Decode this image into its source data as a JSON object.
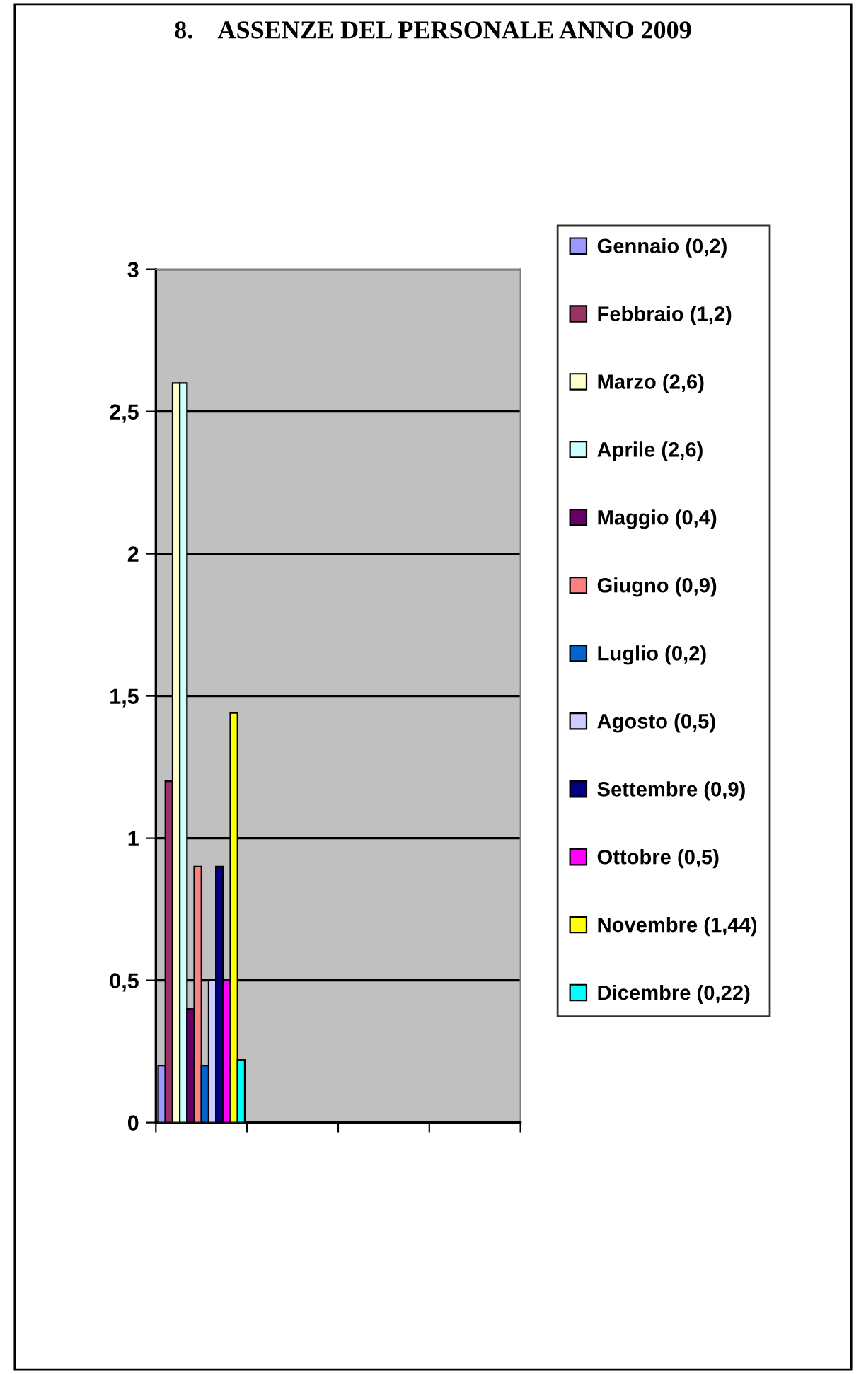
{
  "chart_data": {
    "type": "bar",
    "title": "8.    ASSENZE DEL PERSONALE ANNO 2009",
    "categories": [
      null,
      null,
      null,
      null
    ],
    "series": [
      {
        "name": "Gennaio (0,2)",
        "color": "#9999ff",
        "values": [
          0.2,
          null,
          null,
          null
        ]
      },
      {
        "name": "Febbraio (1,2)",
        "color": "#993366",
        "values": [
          1.2,
          null,
          null,
          null
        ]
      },
      {
        "name": "Marzo (2,6)",
        "color": "#ffffcc",
        "values": [
          2.6,
          null,
          null,
          null
        ]
      },
      {
        "name": "Aprile (2,6)",
        "color": "#ccffff",
        "values": [
          2.6,
          null,
          null,
          null
        ]
      },
      {
        "name": "Maggio (0,4)",
        "color": "#660066",
        "values": [
          0.4,
          null,
          null,
          null
        ]
      },
      {
        "name": "Giugno (0,9)",
        "color": "#ff8080",
        "values": [
          0.9,
          null,
          null,
          null
        ]
      },
      {
        "name": "Luglio (0,2)",
        "color": "#0066cc",
        "values": [
          0.2,
          null,
          null,
          null
        ]
      },
      {
        "name": "Agosto (0,5)",
        "color": "#ccccff",
        "values": [
          0.5,
          null,
          null,
          null
        ]
      },
      {
        "name": "Settembre (0,9)",
        "color": "#000080",
        "values": [
          0.9,
          null,
          null,
          null
        ]
      },
      {
        "name": "Ottobre (0,5)",
        "color": "#ff00ff",
        "values": [
          0.5,
          null,
          null,
          null
        ]
      },
      {
        "name": "Novembre (1,44)",
        "color": "#ffff00",
        "values": [
          1.44,
          null,
          null,
          null
        ]
      },
      {
        "name": "Dicembre (0,22)",
        "color": "#00ffff",
        "values": [
          0.22,
          null,
          null,
          null
        ]
      }
    ],
    "ylim": [
      0,
      3
    ],
    "yticks": [
      0,
      {
        "value": 0.5,
        "label": "0,5"
      },
      1,
      {
        "value": 1.5,
        "label": "1,5"
      },
      2,
      {
        "value": 2.5,
        "label": "2,5"
      },
      3
    ],
    "grid": "y",
    "legend": "right",
    "tick_labels": "y"
  }
}
